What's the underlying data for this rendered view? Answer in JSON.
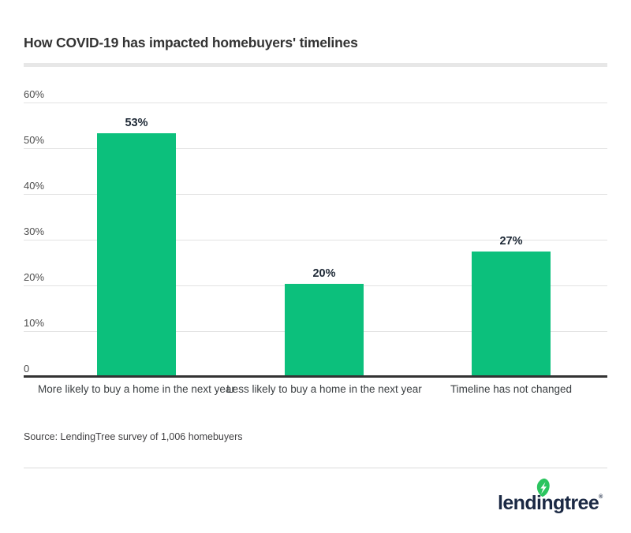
{
  "header": {
    "title": "How COVID-19 has impacted homebuyers' timelines"
  },
  "chart_data": {
    "type": "bar",
    "title": "How COVID-19 has impacted homebuyers' timelines",
    "categories": [
      "More likely to buy a home in the next year",
      "Less likely to buy a home in the next year",
      "Timeline has not changed"
    ],
    "values": [
      53,
      20,
      27
    ],
    "data_labels": [
      "53%",
      "20%",
      "27%"
    ],
    "y_ticks": [
      "60%",
      "50%",
      "40%",
      "30%",
      "20%",
      "10%",
      "0"
    ],
    "ylim": [
      0,
      60
    ],
    "xlabel": "",
    "ylabel": "",
    "grid": true,
    "legend_position": "none",
    "bar_color": "#0cc07c"
  },
  "footer": {
    "source": "Source: LendingTree survey of 1,006 homebuyers",
    "logo_text": "lendingtree",
    "logo_registered": "®",
    "logo_wordmark_color": "#1b2944",
    "logo_leaf_color": "#2bc45f"
  }
}
